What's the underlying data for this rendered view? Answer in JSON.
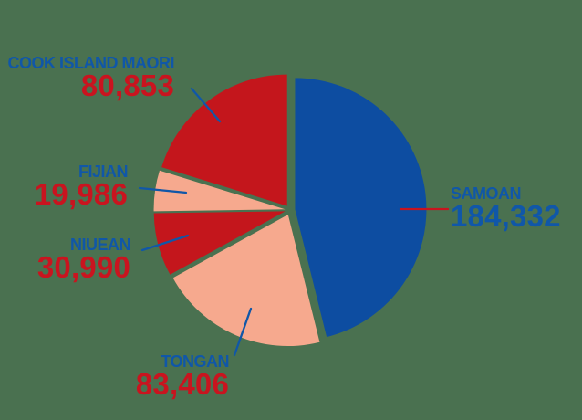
{
  "background_color": "#4a7150",
  "chart_data": {
    "type": "pie",
    "direction": "clockwise",
    "start_angle_deg": 0,
    "legend_position": "none",
    "categories": [
      "SAMOAN",
      "TONGAN",
      "NIUEAN",
      "FIJIAN",
      "COOK ISLAND MAORI"
    ],
    "values": [
      184332,
      83406,
      30990,
      19986,
      80853
    ],
    "slices": [
      {
        "label": "SAMOAN",
        "value": 184332,
        "value_display": "184,332",
        "color": "#0d4da1",
        "label_color": "#1057a8",
        "value_color": "#1057a8",
        "leader_color": "#c9141f"
      },
      {
        "label": "TONGAN",
        "value": 83406,
        "value_display": "83,406",
        "color": "#f6a98e",
        "label_color": "#1057a8",
        "value_color": "#c9141f",
        "leader_color": "#1057a8"
      },
      {
        "label": "NIUEAN",
        "value": 30990,
        "value_display": "30,990",
        "color": "#c4161c",
        "label_color": "#1057a8",
        "value_color": "#c9141f",
        "leader_color": "#1057a8"
      },
      {
        "label": "FIJIAN",
        "value": 19986,
        "value_display": "19,986",
        "color": "#f6a98e",
        "label_color": "#1057a8",
        "value_color": "#c9141f",
        "leader_color": "#1057a8"
      },
      {
        "label": "COOK ISLAND MAORI",
        "value": 80853,
        "value_display": "80,853",
        "color": "#c4161c",
        "label_color": "#1057a8",
        "value_color": "#c9141f",
        "leader_color": "#1057a8"
      }
    ]
  }
}
